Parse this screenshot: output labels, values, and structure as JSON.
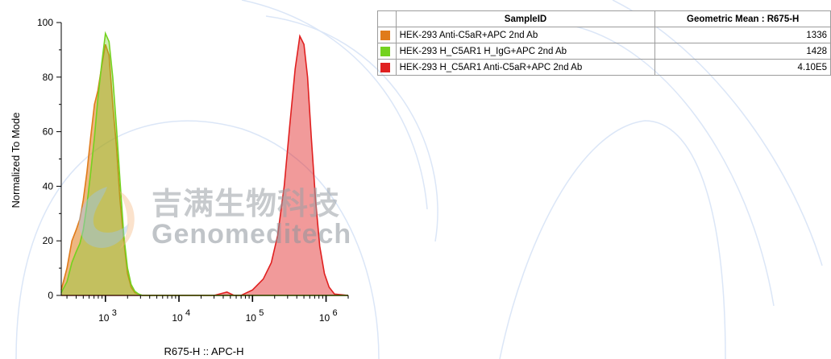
{
  "colors": {
    "orange": "#e07b1a",
    "green": "#74d21f",
    "red": "#e02020"
  },
  "chart_data": {
    "type": "area",
    "xlabel": "R675-H :: APC-H",
    "ylabel": "Normalized To Mode",
    "x_scale": "log",
    "xlim": [
      251,
      2000000
    ],
    "ylim": [
      0,
      100
    ],
    "y_ticks": [
      "0",
      "20",
      "40",
      "60",
      "80",
      "100"
    ],
    "x_ticks": [
      {
        "base": "10",
        "exp": "3"
      },
      {
        "base": "10",
        "exp": "4"
      },
      {
        "base": "10",
        "exp": "5"
      },
      {
        "base": "10",
        "exp": "6"
      }
    ],
    "series": [
      {
        "name": "HEK-293 Anti-C5aR+APC 2nd Ab",
        "color": "#e07b1a",
        "x": [
          251,
          300,
          350,
          400,
          450,
          500,
          560,
          630,
          710,
          790,
          890,
          1000,
          1120,
          1260,
          1410,
          1580,
          1780,
          2000,
          2240,
          2510,
          2820,
          3160,
          3550,
          3980,
          5000,
          7000,
          10000,
          20000,
          50000,
          100000,
          500000,
          2000000
        ],
        "y": [
          2,
          10,
          20,
          24,
          28,
          35,
          45,
          58,
          70,
          75,
          84,
          92,
          88,
          70,
          55,
          35,
          20,
          8,
          3,
          1,
          0.5,
          0,
          0,
          0,
          0,
          0,
          0,
          0,
          0,
          0,
          0,
          0
        ]
      },
      {
        "name": "HEK-293 H_C5AR1 H_IgG+APC 2nd Ab",
        "color": "#74d21f",
        "x": [
          251,
          300,
          350,
          400,
          450,
          500,
          560,
          630,
          710,
          790,
          890,
          1000,
          1120,
          1260,
          1410,
          1580,
          1780,
          2000,
          2240,
          2510,
          2820,
          3160,
          3550,
          3980,
          5000,
          7000,
          10000,
          20000,
          50000,
          100000,
          500000,
          2000000
        ],
        "y": [
          1,
          5,
          12,
          16,
          19,
          24,
          33,
          45,
          58,
          72,
          85,
          96,
          93,
          80,
          62,
          42,
          22,
          10,
          4,
          1.5,
          0.5,
          0,
          0,
          0,
          0,
          0,
          0,
          0,
          0,
          0,
          0,
          0
        ]
      },
      {
        "name": "HEK-293 H_C5AR1 Anti-C5aR+APC 2nd Ab",
        "color": "#e02020",
        "x": [
          251,
          10000,
          30000,
          45000,
          56000,
          70000,
          100000,
          140000,
          180000,
          220000,
          270000,
          320000,
          380000,
          440000,
          500000,
          560000,
          630000,
          720000,
          820000,
          950000,
          1100000,
          1300000,
          2000000
        ],
        "y": [
          0,
          0,
          0,
          1.2,
          0,
          0,
          2,
          6,
          12,
          22,
          40,
          62,
          83,
          95,
          92,
          80,
          58,
          35,
          18,
          8,
          3,
          0.5,
          0
        ]
      }
    ]
  },
  "table": {
    "headers": [
      "SampleID",
      "Geometric Mean : R675-H"
    ],
    "rows": [
      {
        "color": "#e07b1a",
        "sample": "HEK-293 Anti-C5aR+APC 2nd Ab",
        "value": "1336"
      },
      {
        "color": "#74d21f",
        "sample": "HEK-293 H_C5AR1 H_IgG+APC 2nd Ab",
        "value": "1428"
      },
      {
        "color": "#e02020",
        "sample": "HEK-293 H_C5AR1 Anti-C5aR+APC 2nd Ab",
        "value": "4.10E5"
      }
    ]
  },
  "watermark": {
    "logo_cn": "吉满生物科技",
    "logo_en": "Genomeditech"
  }
}
